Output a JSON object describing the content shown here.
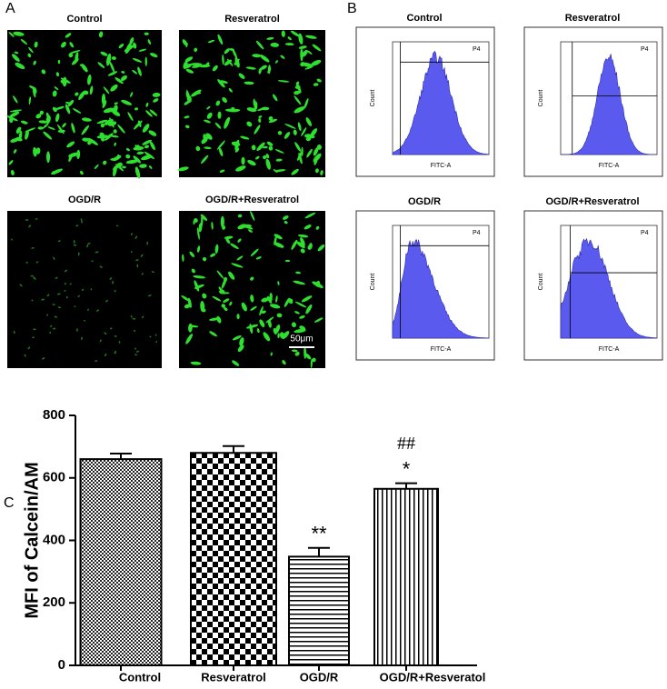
{
  "panel_labels": [
    "A",
    "B",
    "C"
  ],
  "microscopy": {
    "titles": [
      "Control",
      "Resveratrol",
      "OGD/R",
      "OGD/R+Resveratrol"
    ],
    "scale_bar": "50μm"
  },
  "flow": {
    "titles": [
      "Control",
      "Resveratrol",
      "OGD/R",
      "OGD/R+Resveratrol"
    ],
    "gate": "P4",
    "y_label": "Count",
    "x_label": "FITC-A"
  },
  "chart_data": {
    "type": "bar",
    "y_label": "MFI of Calcein/AM",
    "categories": [
      "Control",
      "Resveratrol",
      "OGD/R",
      "OGD/R+Resveratol"
    ],
    "values": [
      660,
      680,
      348,
      565
    ],
    "errors": [
      18,
      22,
      28,
      18
    ],
    "significance": [
      null,
      null,
      "**",
      "*"
    ],
    "significance_vs_ogdr": [
      null,
      null,
      null,
      "##"
    ],
    "ylim": [
      0,
      800
    ],
    "yticks": [
      0,
      200,
      400,
      600,
      800
    ],
    "color": "#000000"
  }
}
